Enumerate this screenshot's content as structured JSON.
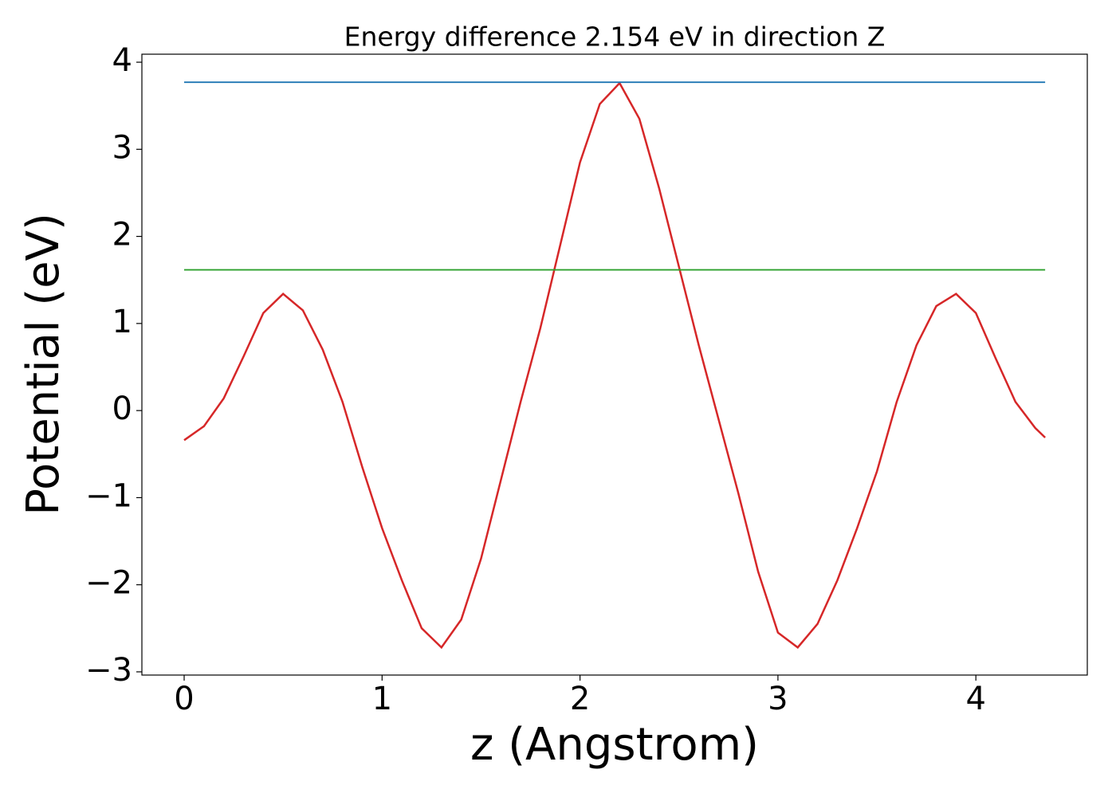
{
  "chart_data": {
    "type": "line",
    "title": "Energy difference 2.154 eV in direction Z",
    "xlabel": "z (Angstrom)",
    "ylabel": "Potential (eV)",
    "xlim": [
      -0.2135,
      4.563
    ],
    "ylim": [
      -3.037,
      4.092
    ],
    "xticks": [
      0,
      1,
      2,
      3,
      4
    ],
    "yticks": [
      {
        "value": -3,
        "label": "−3"
      },
      {
        "value": -2,
        "label": "−2"
      },
      {
        "value": -1,
        "label": "−1"
      },
      0,
      1,
      2,
      3,
      4
    ],
    "grid": false,
    "series": [
      {
        "color": "#d62728",
        "x": [
          0,
          0.1,
          0.2,
          0.3,
          0.4,
          0.5,
          0.6,
          0.7,
          0.8,
          0.9,
          1.0,
          1.1,
          1.2,
          1.3,
          1.4,
          1.5,
          1.6,
          1.7,
          1.8,
          1.9,
          2.0,
          2.1,
          2.2,
          2.3,
          2.4,
          2.5,
          2.6,
          2.7,
          2.8,
          2.9,
          3.0,
          3.1,
          3.2,
          3.3,
          3.4,
          3.5,
          3.6,
          3.7,
          3.8,
          3.9,
          4.0,
          4.1,
          4.2,
          4.3,
          4.35
        ],
        "values": [
          -0.34,
          -0.18,
          0.14,
          0.62,
          1.12,
          1.34,
          1.15,
          0.7,
          0.1,
          -0.65,
          -1.35,
          -1.95,
          -2.5,
          -2.72,
          -2.4,
          -1.7,
          -0.8,
          0.1,
          0.95,
          1.9,
          2.85,
          3.52,
          3.76,
          3.35,
          2.55,
          1.65,
          0.75,
          -0.1,
          -0.95,
          -1.85,
          -2.55,
          -2.72,
          -2.45,
          -1.95,
          -1.35,
          -0.7,
          0.1,
          0.75,
          1.2,
          1.34,
          1.12,
          0.6,
          0.1,
          -0.2,
          -0.31
        ]
      },
      {
        "color": "#1f77b4",
        "x": [
          0,
          4.35
        ],
        "values": [
          3.77,
          3.77
        ]
      },
      {
        "color": "#2ca02c",
        "x": [
          0,
          4.35
        ],
        "values": [
          1.616,
          1.616
        ]
      }
    ]
  }
}
